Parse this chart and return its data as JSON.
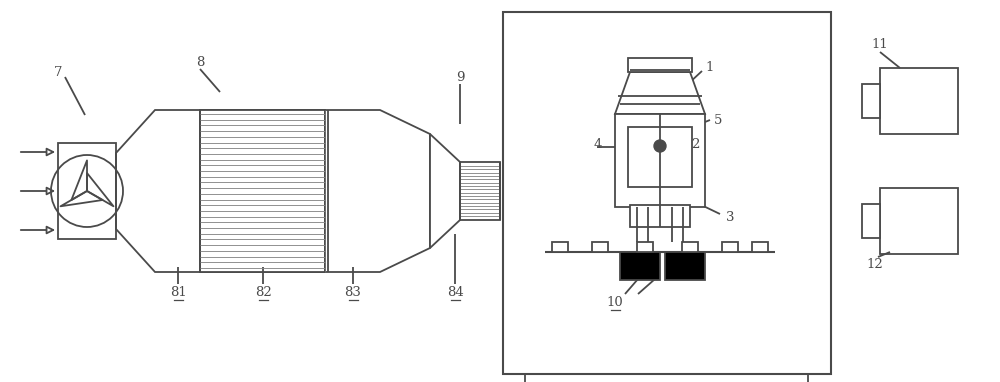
{
  "bg_color": "#ffffff",
  "line_color": "#4a4a4a",
  "figsize": [
    10.0,
    3.82
  ],
  "dpi": 100,
  "underline_labels": [
    "81",
    "82",
    "83",
    "84",
    "10"
  ]
}
